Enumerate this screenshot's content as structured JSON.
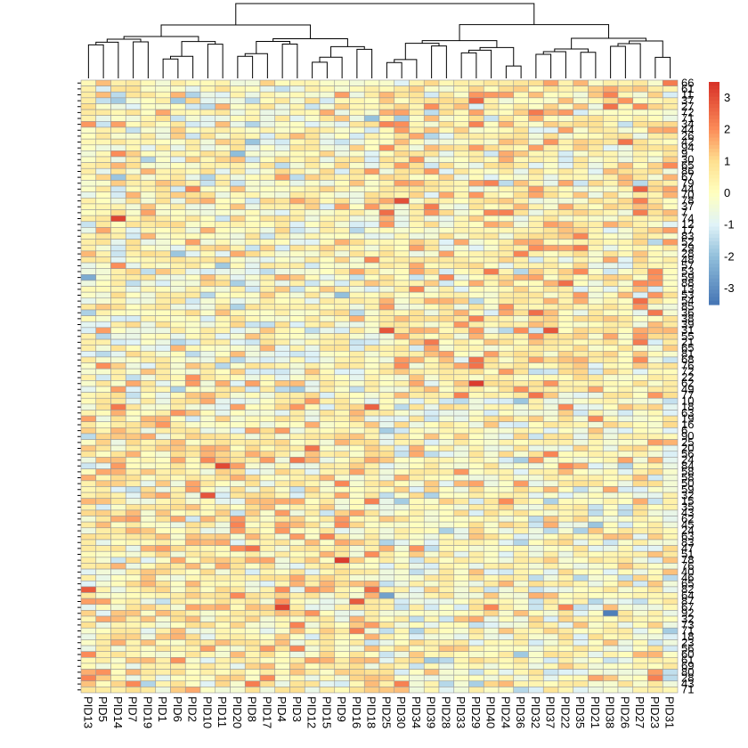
{
  "chart_data": {
    "type": "heatmap",
    "title": "",
    "columns": [
      "PID13",
      "PID5",
      "PID14",
      "PID7",
      "PID19",
      "PID1",
      "PID6",
      "PID2",
      "PID10",
      "PID11",
      "PID20",
      "PID8",
      "PID17",
      "PID4",
      "PID3",
      "PID12",
      "PID15",
      "PID9",
      "PID16",
      "PID18",
      "PID25",
      "PID30",
      "PID34",
      "PID39",
      "PID28",
      "PID33",
      "PID29",
      "PID40",
      "PID24",
      "PID36",
      "PID32",
      "PID37",
      "PID22",
      "PID35",
      "PID21",
      "PID38",
      "PID26",
      "PID27",
      "PID23",
      "PID31"
    ],
    "rows": [
      "66",
      "61",
      "11",
      "37",
      "27",
      "72",
      "71",
      "34",
      "44",
      "26",
      "42",
      "94",
      "9",
      "30",
      "65",
      "86",
      "67",
      "79",
      "44",
      "70",
      "78",
      "37",
      "7",
      "74",
      "12",
      "17",
      "83",
      "52",
      "29",
      "28",
      "48",
      "57",
      "53",
      "59",
      "88",
      "13",
      "53",
      "54",
      "85",
      "36",
      "38",
      "39",
      "31",
      "55",
      "21",
      "65",
      "81",
      "68",
      "76",
      "72",
      "22",
      "62",
      "49",
      "77",
      "10",
      "18",
      "63",
      "19",
      "16",
      "6",
      "90",
      "25",
      "20",
      "56",
      "24",
      "84",
      "58",
      "58",
      "50",
      "59",
      "32",
      "15",
      "35",
      "43",
      "62",
      "45",
      "24",
      "63",
      "83",
      "47",
      "51",
      "78",
      "76",
      "40",
      "46",
      "65",
      "82",
      "64",
      "87",
      "67",
      "92",
      "32",
      "73",
      "71",
      "18",
      "23",
      "56",
      "60",
      "61",
      "69",
      "80",
      "28",
      "43",
      "71"
    ],
    "values_note": "",
    "color_scale": {
      "ticks": [
        3,
        2,
        1,
        0,
        -1,
        -2,
        -3
      ],
      "colors": [
        "#4575b4",
        "#91bfdb",
        "#e0f3f8",
        "#ffffbf",
        "#fee090",
        "#fc8d59",
        "#d73027"
      ],
      "range": [
        -3.5,
        3.5
      ]
    },
    "highlights": [
      {
        "row": 23,
        "col": 2,
        "value": 3.2
      },
      {
        "row": 20,
        "col": 21,
        "value": 3.0
      },
      {
        "row": 51,
        "col": 26,
        "value": 3.3
      },
      {
        "row": 42,
        "col": 20,
        "value": 2.9
      },
      {
        "row": 42,
        "col": 31,
        "value": 2.9
      },
      {
        "row": 65,
        "col": 9,
        "value": 3.1
      },
      {
        "row": 70,
        "col": 8,
        "value": 2.9
      },
      {
        "row": 81,
        "col": 17,
        "value": 3.3
      },
      {
        "row": 89,
        "col": 13,
        "value": 3.2
      },
      {
        "row": 55,
        "col": 19,
        "value": 2.7
      },
      {
        "row": 86,
        "col": 0,
        "value": 2.8
      },
      {
        "row": 88,
        "col": 18,
        "value": 2.8
      },
      {
        "row": 18,
        "col": 37,
        "value": 2.7
      },
      {
        "row": 90,
        "col": 35,
        "value": -3.3
      },
      {
        "row": 87,
        "col": 20,
        "value": -2.6
      },
      {
        "row": 33,
        "col": 0,
        "value": -2.4
      },
      {
        "row": 37,
        "col": 37,
        "value": 2.5
      }
    ]
  }
}
